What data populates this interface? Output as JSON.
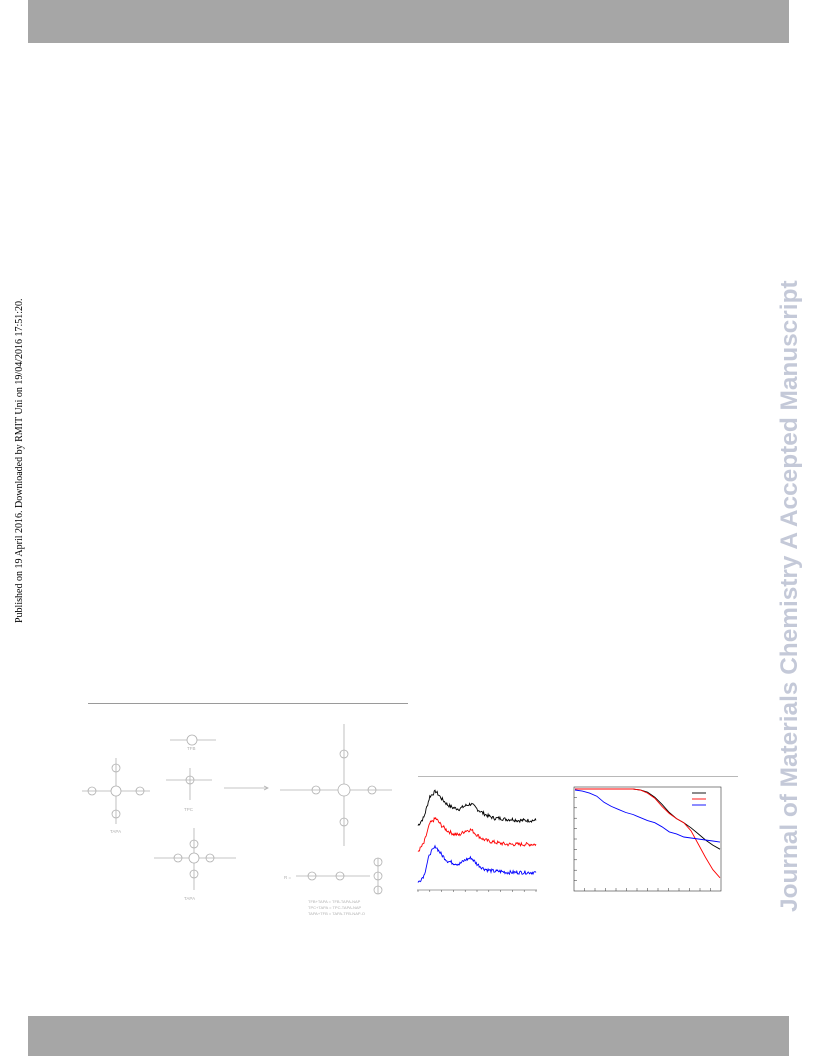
{
  "page": {
    "publication_note": "Published on 19 April 2016. Downloaded by RMIT Uni on 19/04/2016 17:51:20.",
    "watermark": "Journal of Materials Chemistry A Accepted Manuscript"
  },
  "scheme": {
    "labels": {
      "tapa": "TAPA",
      "tapa_bottom": "TAPA",
      "tfb": "TFB",
      "tpc": "TPC",
      "product_1": "TFB+TAPA  =  TFB-TAPA-NAP",
      "product_2": "TPC+TAPA  =  TPC-TAPA-NAP",
      "product_3": "TAPA+TFB  =  TAPA-TFB-NAP-O",
      "r_group": "R ="
    }
  },
  "chart_data": [
    {
      "type": "line",
      "title": "",
      "xlabel": "",
      "ylabel": "",
      "description_of_axes": "tick labels not legible",
      "series": [
        {
          "color": "#000000",
          "x": [
            0,
            5,
            10,
            15,
            20,
            25,
            30,
            35,
            40,
            45,
            50,
            55,
            60,
            65,
            70,
            75,
            80,
            85,
            90,
            95,
            100
          ],
          "values": [
            0.6,
            0.68,
            0.88,
            0.93,
            0.86,
            0.8,
            0.77,
            0.76,
            0.79,
            0.81,
            0.76,
            0.72,
            0.69,
            0.67,
            0.67,
            0.66,
            0.66,
            0.65,
            0.65,
            0.65,
            0.65
          ]
        },
        {
          "color": "#ff0000",
          "x": [
            0,
            5,
            10,
            15,
            20,
            25,
            30,
            35,
            40,
            45,
            50,
            55,
            60,
            65,
            70,
            75,
            80,
            85,
            90,
            95,
            100
          ],
          "values": [
            0.35,
            0.43,
            0.62,
            0.67,
            0.6,
            0.55,
            0.52,
            0.51,
            0.55,
            0.56,
            0.51,
            0.47,
            0.45,
            0.44,
            0.43,
            0.42,
            0.42,
            0.42,
            0.42,
            0.42,
            0.42
          ]
        },
        {
          "color": "#0000ff",
          "x": [
            0,
            5,
            10,
            15,
            20,
            25,
            30,
            35,
            40,
            45,
            50,
            55,
            60,
            65,
            70,
            75,
            80,
            85,
            90,
            95,
            100
          ],
          "values": [
            0.05,
            0.12,
            0.33,
            0.4,
            0.32,
            0.26,
            0.24,
            0.23,
            0.27,
            0.29,
            0.23,
            0.19,
            0.17,
            0.16,
            0.16,
            0.15,
            0.15,
            0.15,
            0.15,
            0.15,
            0.15
          ]
        }
      ]
    },
    {
      "type": "line",
      "title": "",
      "xlabel": "",
      "ylabel": "",
      "legend_placement": "top-right",
      "series": [
        {
          "color": "#000000",
          "x": [
            0,
            10,
            20,
            30,
            40,
            45,
            50,
            55,
            60,
            65,
            70,
            75,
            80,
            85,
            90,
            95,
            100
          ],
          "values": [
            0.99,
            0.99,
            0.99,
            0.99,
            0.99,
            0.98,
            0.96,
            0.91,
            0.84,
            0.76,
            0.7,
            0.66,
            0.61,
            0.55,
            0.49,
            0.44,
            0.4
          ]
        },
        {
          "color": "#ff0000",
          "x": [
            0,
            10,
            20,
            30,
            40,
            45,
            50,
            55,
            60,
            65,
            70,
            75,
            80,
            85,
            90,
            95,
            100
          ],
          "values": [
            0.99,
            0.99,
            0.99,
            0.99,
            0.99,
            0.98,
            0.95,
            0.9,
            0.82,
            0.75,
            0.7,
            0.66,
            0.58,
            0.45,
            0.32,
            0.2,
            0.12
          ]
        },
        {
          "color": "#0000ff",
          "x": [
            0,
            5,
            10,
            15,
            20,
            25,
            30,
            35,
            40,
            45,
            50,
            55,
            60,
            65,
            70,
            75,
            80,
            85,
            90,
            95,
            100
          ],
          "values": [
            0.98,
            0.97,
            0.95,
            0.92,
            0.86,
            0.82,
            0.79,
            0.76,
            0.74,
            0.71,
            0.68,
            0.66,
            0.62,
            0.57,
            0.55,
            0.52,
            0.51,
            0.5,
            0.49,
            0.48,
            0.47
          ]
        }
      ]
    }
  ]
}
